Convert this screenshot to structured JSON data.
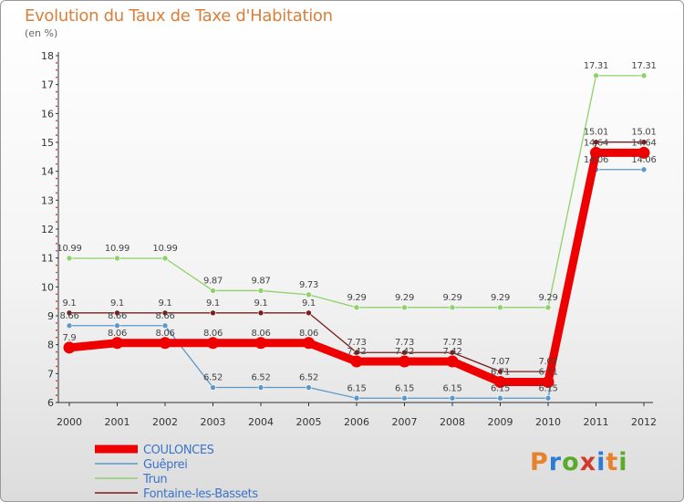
{
  "header": {
    "title": "Evolution du Taux de Taxe d'Habitation",
    "subtitle": "(en %)"
  },
  "logo": {
    "text": "Proxiti",
    "colors": [
      "#e8822a",
      "#2c7bd6",
      "#5aaa2c",
      "#d43a2a",
      "#2c7bd6",
      "#e8822a",
      "#5aaa2c"
    ]
  },
  "chart_data": {
    "type": "line",
    "title": "Evolution du Taux de Taxe d'Habitation",
    "ylabel": "(en %)",
    "xlabel": "",
    "ylim": [
      6,
      18
    ],
    "yticks": [
      6,
      7,
      8,
      9,
      10,
      11,
      12,
      13,
      14,
      15,
      16,
      17,
      18
    ],
    "grid": false,
    "legend_position": "bottom-left",
    "categories": [
      "2000",
      "2001",
      "2002",
      "2003",
      "2004",
      "2005",
      "2006",
      "2007",
      "2008",
      "2009",
      "2010",
      "2011",
      "2012"
    ],
    "series": [
      {
        "name": "COULONCES",
        "color": "#ee0000",
        "values": [
          7.9,
          8.06,
          8.06,
          8.06,
          8.06,
          8.06,
          7.42,
          7.42,
          7.42,
          6.71,
          6.71,
          14.64,
          14.64
        ]
      },
      {
        "name": "Guêprei",
        "color": "#5b97c7",
        "values": [
          8.66,
          8.66,
          8.66,
          6.52,
          6.52,
          6.52,
          6.15,
          6.15,
          6.15,
          6.15,
          6.15,
          14.06,
          14.06
        ]
      },
      {
        "name": "Trun",
        "color": "#8fd16a",
        "values": [
          10.99,
          10.99,
          10.99,
          9.87,
          9.87,
          9.73,
          9.29,
          9.29,
          9.29,
          9.29,
          9.29,
          17.31,
          17.31
        ]
      },
      {
        "name": "Fontaine-les-Bassets",
        "color": "#7a1f1f",
        "values": [
          9.1,
          9.1,
          9.1,
          9.1,
          9.1,
          9.1,
          7.73,
          7.73,
          7.73,
          7.07,
          7.07,
          15.01,
          15.01
        ]
      }
    ]
  }
}
